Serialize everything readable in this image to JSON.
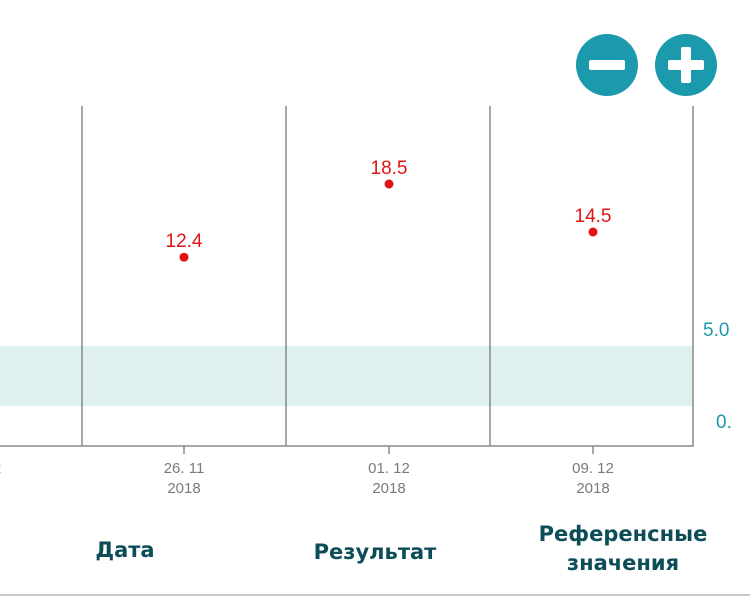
{
  "controls": {
    "zoom_out_icon": "minus-icon",
    "zoom_in_icon": "plus-icon",
    "accent_color": "#1a9aac"
  },
  "chart_data": {
    "type": "scatter",
    "x": [
      "26. 11\n2018",
      "01. 12\n2018",
      "09. 12\n2018"
    ],
    "x_tick_labels": [
      {
        "line1": "26. 11",
        "line2": "2018"
      },
      {
        "line1": "01. 12",
        "line2": "2018"
      },
      {
        "line1": "09. 12",
        "line2": "2018"
      }
    ],
    "left_partial_tick": "2",
    "series": [
      {
        "values": [
          12.4,
          18.5,
          14.5
        ],
        "labels": [
          "12.4",
          "18.5",
          "14.5"
        ],
        "color": "#e01414"
      }
    ],
    "reference_band": {
      "from": 0,
      "to": 5
    },
    "y_tick_labels": [
      "5.0",
      "0."
    ],
    "point_color": "#e01414",
    "band_color": "#dff1ef"
  },
  "columns": {
    "date": "Дата",
    "result": "Результат",
    "reference_line1": "Референсные",
    "reference_line2": "значения"
  }
}
